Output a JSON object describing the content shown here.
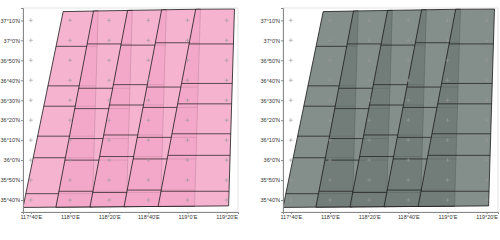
{
  "chart_data": [
    {
      "type": "map",
      "grid": true,
      "color": "#f3a6c8",
      "xlim": [
        117.6,
        119.43
      ],
      "ylim": [
        35.567,
        37.27
      ],
      "xticks": [
        {
          "value": 117.6667,
          "label": "117°40'E"
        },
        {
          "value": 118,
          "label": "118°0'E"
        },
        {
          "value": 118.3333,
          "label": "118°20'E"
        },
        {
          "value": 118.6667,
          "label": "118°40'E"
        },
        {
          "value": 119,
          "label": "119°0'E"
        },
        {
          "value": 119.3333,
          "label": "119°20'E"
        }
      ],
      "yticks": [
        {
          "value": 37.1667,
          "label": "37°10'N"
        },
        {
          "value": 37,
          "label": "37°0'N"
        },
        {
          "value": 36.8333,
          "label": "36°50'N"
        },
        {
          "value": 36.6667,
          "label": "36°40'N"
        },
        {
          "value": 36.5,
          "label": "36°30'N"
        },
        {
          "value": 36.3333,
          "label": "36°20'N"
        },
        {
          "value": 36.1667,
          "label": "36°10'N"
        },
        {
          "value": 36,
          "label": "36°0'N"
        },
        {
          "value": 35.8333,
          "label": "35°50'N"
        },
        {
          "value": 35.6667,
          "label": "35°40'N"
        }
      ],
      "footprints": [
        {
          "corners": [
            [
              117.942,
              37.24
            ],
            [
              118.24,
              37.245
            ],
            [
              118.19,
              35.61
            ],
            [
              117.6,
              35.605
            ]
          ],
          "frames": [
            36.95,
            36.62,
            36.45,
            36.2,
            36.02,
            35.72
          ]
        },
        {
          "corners": [
            [
              118.2,
              37.245
            ],
            [
              118.53,
              37.25
            ],
            [
              118.48,
              35.612
            ],
            [
              117.88,
              35.607
            ]
          ],
          "frames": [
            36.97,
            36.6,
            36.43,
            36.18,
            36.0,
            35.74
          ]
        },
        {
          "corners": [
            [
              118.49,
              37.25
            ],
            [
              118.82,
              37.255
            ],
            [
              118.77,
              35.614
            ],
            [
              118.17,
              35.609
            ]
          ],
          "frames": [
            36.96,
            36.63,
            36.46,
            36.21,
            36.03,
            35.73
          ]
        },
        {
          "corners": [
            [
              118.78,
              37.255
            ],
            [
              119.11,
              37.26
            ],
            [
              119.06,
              35.616
            ],
            [
              118.46,
              35.611
            ]
          ],
          "frames": [
            36.98,
            36.61,
            36.44,
            36.19,
            36.01,
            35.75
          ]
        },
        {
          "corners": [
            [
              119.07,
              37.26
            ],
            [
              119.4,
              37.262
            ],
            [
              119.35,
              35.618
            ],
            [
              118.75,
              35.613
            ]
          ],
          "frames": [
            36.97,
            36.64,
            36.47,
            36.22,
            36.04,
            35.74
          ]
        }
      ]
    },
    {
      "type": "map",
      "grid": true,
      "color": "#6e7a76",
      "xlim": [
        117.6,
        119.43
      ],
      "ylim": [
        35.567,
        37.27
      ],
      "xticks": [
        {
          "value": 117.6667,
          "label": "117°40'E"
        },
        {
          "value": 118,
          "label": "118°0'E"
        },
        {
          "value": 118.3333,
          "label": "118°20'E"
        },
        {
          "value": 118.6667,
          "label": "118°40'E"
        },
        {
          "value": 119,
          "label": "119°0'E"
        },
        {
          "value": 119.3333,
          "label": "119°20'E"
        }
      ],
      "yticks": [
        {
          "value": 37.1667,
          "label": "37°10'N"
        },
        {
          "value": 37,
          "label": "37°0'N"
        },
        {
          "value": 36.8333,
          "label": "36°50'N"
        },
        {
          "value": 36.6667,
          "label": "36°40'N"
        },
        {
          "value": 36.5,
          "label": "36°30'N"
        },
        {
          "value": 36.3333,
          "label": "36°20'N"
        },
        {
          "value": 36.1667,
          "label": "36°10'N"
        },
        {
          "value": 36,
          "label": "36°0'N"
        },
        {
          "value": 35.8333,
          "label": "35°50'N"
        },
        {
          "value": 35.6667,
          "label": "35°40'N"
        }
      ],
      "footprints": [
        {
          "corners": [
            [
              117.942,
              37.24
            ],
            [
              118.24,
              37.245
            ],
            [
              118.19,
              35.61
            ],
            [
              117.6,
              35.605
            ]
          ],
          "frames": [
            36.95,
            36.62,
            36.45,
            36.2,
            36.02,
            35.72
          ]
        },
        {
          "corners": [
            [
              118.2,
              37.245
            ],
            [
              118.53,
              37.25
            ],
            [
              118.48,
              35.612
            ],
            [
              117.88,
              35.607
            ]
          ],
          "frames": [
            36.97,
            36.6,
            36.43,
            36.18,
            36.0,
            35.74
          ]
        },
        {
          "corners": [
            [
              118.49,
              37.25
            ],
            [
              118.82,
              37.255
            ],
            [
              118.77,
              35.614
            ],
            [
              118.17,
              35.609
            ]
          ],
          "frames": [
            36.96,
            36.63,
            36.46,
            36.21,
            36.03,
            35.73
          ]
        },
        {
          "corners": [
            [
              118.78,
              37.255
            ],
            [
              119.11,
              37.26
            ],
            [
              119.06,
              35.616
            ],
            [
              118.46,
              35.611
            ]
          ],
          "frames": [
            36.98,
            36.61,
            36.44,
            36.19,
            36.01,
            35.75
          ]
        },
        {
          "corners": [
            [
              119.07,
              37.26
            ],
            [
              119.4,
              37.262
            ],
            [
              119.35,
              35.618
            ],
            [
              118.75,
              35.613
            ]
          ],
          "frames": [
            36.97,
            36.64,
            36.47,
            36.22,
            36.04,
            35.74
          ]
        }
      ]
    }
  ]
}
